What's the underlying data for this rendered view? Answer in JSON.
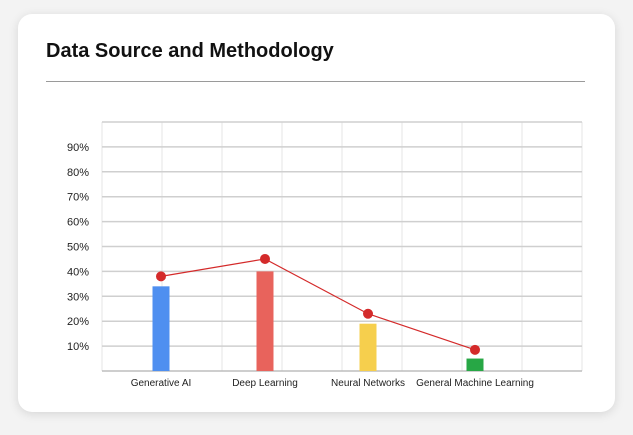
{
  "card": {
    "title": "Data Source and Methodology"
  },
  "chart_data": {
    "type": "bar",
    "categories": [
      "Generative AI",
      "Deep Learning",
      "Neural Networks",
      "General Machine Learning"
    ],
    "series": [
      {
        "type": "bar",
        "values": [
          34,
          40,
          19,
          5
        ],
        "colors": [
          "#4f8ff0",
          "#e8635c",
          "#f6cf4d",
          "#27a745"
        ]
      },
      {
        "type": "line",
        "values": [
          38,
          45,
          23,
          8.5
        ],
        "color": "#d42a2a"
      }
    ],
    "yticks": [
      "10%",
      "20%",
      "30%",
      "40%",
      "50%",
      "60%",
      "70%",
      "80%",
      "90%"
    ],
    "ytick_values": [
      10,
      20,
      30,
      40,
      50,
      60,
      70,
      80,
      90
    ],
    "ylim": [
      0,
      100
    ],
    "grid": true,
    "legend": "none"
  }
}
